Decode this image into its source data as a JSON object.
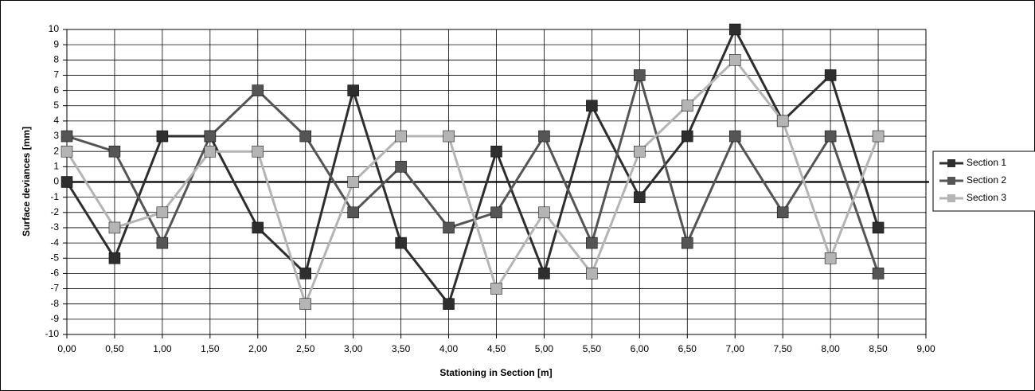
{
  "chart_data": {
    "type": "line",
    "x_label": "Stationing in Section [m]",
    "y_label": "Surface deviances [mm]",
    "x": [
      0,
      0.5,
      1,
      1.5,
      2,
      2.5,
      3,
      3.5,
      4,
      4.5,
      5,
      5.5,
      6,
      6.5,
      7,
      7.5,
      8,
      8.5
    ],
    "series": [
      {
        "name": "Section 1",
        "color": "#2e2e2e",
        "values": [
          0,
          -5,
          3,
          3,
          -3,
          -6,
          6,
          -4,
          -8,
          2,
          -6,
          5,
          -1,
          3,
          10,
          4,
          7,
          -3
        ]
      },
      {
        "name": "Section 2",
        "color": "#555555",
        "values": [
          3,
          2,
          -4,
          3,
          6,
          3,
          -2,
          1,
          -3,
          -2,
          3,
          -4,
          7,
          -4,
          3,
          -2,
          3,
          -6
        ]
      },
      {
        "name": "Section 3",
        "color": "#b4b4b4",
        "values": [
          2,
          -3,
          -2,
          2,
          2,
          -8,
          0,
          3,
          3,
          -7,
          -2,
          -6,
          2,
          5,
          8,
          4,
          -5,
          3
        ]
      }
    ],
    "xlim": [
      0,
      9
    ],
    "ylim": [
      -10,
      10
    ],
    "xticks": [
      {
        "value": 0,
        "label": "0,00"
      },
      {
        "value": 0.5,
        "label": "0,50"
      },
      {
        "value": 1,
        "label": "1,00"
      },
      {
        "value": 1.5,
        "label": "1,50"
      },
      {
        "value": 2,
        "label": "2,00"
      },
      {
        "value": 2.5,
        "label": "2,50"
      },
      {
        "value": 3,
        "label": "3,00"
      },
      {
        "value": 3.5,
        "label": "3,50"
      },
      {
        "value": 4,
        "label": "4,00"
      },
      {
        "value": 4.5,
        "label": "4,50"
      },
      {
        "value": 5,
        "label": "5,00"
      },
      {
        "value": 5.5,
        "label": "5,50"
      },
      {
        "value": 6,
        "label": "6,00"
      },
      {
        "value": 6.5,
        "label": "6,50"
      },
      {
        "value": 7,
        "label": "7,00"
      },
      {
        "value": 7.5,
        "label": "7,50"
      },
      {
        "value": 8,
        "label": "8,00"
      },
      {
        "value": 8.5,
        "label": "8,50"
      },
      {
        "value": 9,
        "label": "9,00"
      }
    ],
    "yticks": [
      -10,
      -9,
      -8,
      -7,
      -6,
      -5,
      -4,
      -3,
      -2,
      -1,
      0,
      1,
      2,
      3,
      4,
      5,
      6,
      7,
      8,
      9,
      10
    ],
    "grid": true,
    "legend": "right"
  }
}
